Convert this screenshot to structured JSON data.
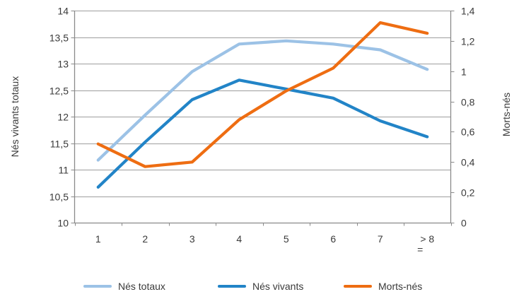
{
  "chart_data": {
    "type": "line",
    "categories": [
      "1",
      "2",
      "3",
      "4",
      "5",
      "6",
      "7",
      "> 8\n="
    ],
    "left_axis": {
      "title": "Nés vivants totaux",
      "min": 10,
      "max": 14,
      "step": 0.5,
      "tick_labels": [
        "10",
        "10,5",
        "11",
        "11,5",
        "12",
        "12,5",
        "13",
        "13,5",
        "14"
      ]
    },
    "right_axis": {
      "title": "Morts-nés",
      "min": 0,
      "max": 1.4,
      "step": 0.2,
      "tick_labels": [
        "0",
        "0,2",
        "0,4",
        "0,6",
        "0,8",
        "1",
        "1,2",
        "1,4"
      ]
    },
    "series": [
      {
        "name": "Nés totaux",
        "axis": "left",
        "color": "#9CC2E6",
        "values": [
          11.18,
          12.03,
          12.85,
          13.37,
          13.43,
          13.37,
          13.26,
          12.89
        ]
      },
      {
        "name": "Nés vivants",
        "axis": "left",
        "color": "#2284C7",
        "values": [
          10.67,
          11.52,
          12.32,
          12.69,
          12.52,
          12.35,
          11.92,
          11.62
        ]
      },
      {
        "name": "Morts-nés",
        "axis": "right",
        "color": "#EE6D12",
        "values": [
          0.52,
          0.37,
          0.4,
          0.68,
          0.87,
          1.02,
          1.32,
          1.25
        ]
      }
    ],
    "legend": {
      "position": "bottom"
    },
    "grid": true,
    "colors": {
      "grid": "#9e9e9e",
      "axis": "#8a8a8a",
      "text": "#3a3a3a",
      "background": "#ffffff"
    }
  }
}
